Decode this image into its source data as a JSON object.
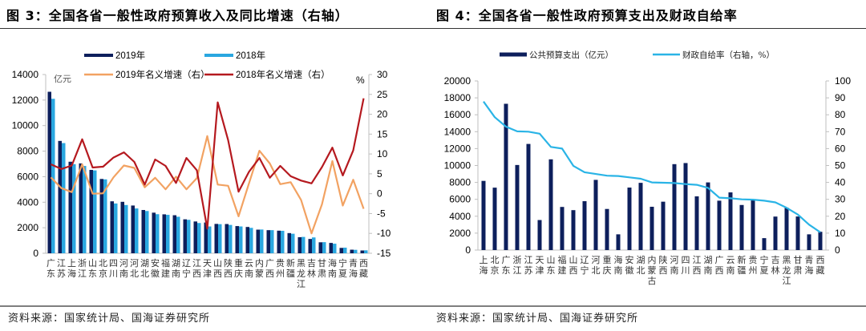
{
  "panels": {
    "left": {
      "title": "图 3：全国各省一般性政府预算收入及同比增速（右轴）",
      "source": "资料来源：国家统计局、国海证券研究所"
    },
    "right": {
      "title": "图 4：全国各省一般性政府预算支出及财政自给率",
      "source": "资料来源：国家统计局、国海证券研究所"
    }
  },
  "chart_data": [
    {
      "type": "bar",
      "title": "全国各省一般性政府预算收入及同比增速（右轴）",
      "left_unit_label": "亿元",
      "right_unit_label": "%",
      "ylim": [
        0,
        14000
      ],
      "y_ticks": [
        0,
        2000,
        4000,
        6000,
        8000,
        10000,
        12000,
        14000
      ],
      "y2lim": [
        -15,
        30
      ],
      "y2_ticks": [
        -15,
        -10,
        -5,
        0,
        5,
        10,
        15,
        20,
        25,
        30
      ],
      "grid": false,
      "legend_position": "top",
      "categories": [
        "广东",
        "江苏",
        "上海",
        "浙江",
        "山东",
        "北京",
        "四川",
        "河南",
        "河北",
        "湖北",
        "安徽",
        "福建",
        "湖南",
        "辽宁",
        "江西",
        "天津",
        "山西",
        "陕西",
        "重庆",
        "云南",
        "内蒙",
        "广西",
        "贵州",
        "新疆",
        "黑龙江",
        "吉林",
        "甘肃",
        "海南",
        "宁夏",
        "青海",
        "西藏"
      ],
      "series": [
        {
          "name": "2019年",
          "type": "bar",
          "axis": "left",
          "color": "#0d1f5c",
          "values": [
            12650,
            8800,
            7170,
            7040,
            6530,
            5820,
            4070,
            4030,
            3740,
            3390,
            3180,
            3050,
            2980,
            2660,
            2490,
            2410,
            2300,
            2290,
            2130,
            2060,
            1850,
            1810,
            1770,
            1580,
            1260,
            1120,
            860,
            810,
            420,
            280,
            220
          ]
        },
        {
          "name": "2018年",
          "type": "bar",
          "axis": "left",
          "color": "#2aa7e0",
          "values": [
            12100,
            8630,
            6980,
            6840,
            6490,
            5790,
            3900,
            3780,
            3510,
            3310,
            3060,
            3010,
            2860,
            2620,
            2370,
            2100,
            2280,
            2220,
            2100,
            1990,
            1860,
            1810,
            1760,
            1530,
            1280,
            1240,
            870,
            750,
            440,
            270,
            230
          ]
        },
        {
          "name": "2019年名义增速（右）",
          "type": "line",
          "axis": "right",
          "color": "#f2a262",
          "values": [
            4.1,
            1.4,
            0.4,
            7.4,
            0.0,
            0.1,
            4.1,
            7.1,
            6.5,
            1.6,
            4.0,
            1.1,
            4.3,
            1.1,
            3.9,
            14.5,
            2.3,
            2.0,
            -5.7,
            2.6,
            10.8,
            7.6,
            2.4,
            2.9,
            -1.6,
            -10.0,
            -2.7,
            8.2,
            -3.0,
            3.5,
            -3.8
          ]
        },
        {
          "name": "2018年名义增速（右）",
          "type": "line",
          "axis": "right",
          "color": "#b5191f",
          "values": [
            7.4,
            6.2,
            7.1,
            13.7,
            6.6,
            6.8,
            9.1,
            10.4,
            8.0,
            2.3,
            8.6,
            7.0,
            2.7,
            9.0,
            5.9,
            -8.8,
            23.0,
            13.5,
            0.5,
            5.5,
            9.0,
            4.0,
            7.0,
            4.4,
            3.3,
            2.6,
            6.7,
            11.6,
            4.6,
            10.9,
            24.0
          ]
        }
      ]
    },
    {
      "type": "bar",
      "title": "全国各省一般性政府预算支出及财政自给率",
      "ylim": [
        0,
        20000
      ],
      "y_ticks": [
        0,
        2000,
        4000,
        6000,
        8000,
        10000,
        12000,
        14000,
        16000,
        18000,
        20000
      ],
      "y2lim": [
        0,
        100
      ],
      "y2_ticks": [
        0,
        10,
        20,
        30,
        40,
        50,
        60,
        70,
        80,
        90,
        100
      ],
      "grid": false,
      "legend_position": "top",
      "categories": [
        "上海",
        "北京",
        "广东",
        "浙江",
        "江苏",
        "天津",
        "山东",
        "福建",
        "山西",
        "辽宁",
        "河北",
        "重庆",
        "海南",
        "安徽",
        "湖北",
        "内蒙古",
        "陕西",
        "河南",
        "四川",
        "江西",
        "湖南",
        "广西",
        "云南",
        "新疆",
        "贵州",
        "宁夏",
        "吉林",
        "黑龙江",
        "甘肃",
        "青海",
        "西藏"
      ],
      "series": [
        {
          "name": "公共预算支出（亿元）",
          "type": "bar",
          "axis": "left",
          "color": "#0d1f5c",
          "values": [
            8180,
            7380,
            17300,
            10060,
            12550,
            3550,
            10730,
            5100,
            4720,
            5780,
            8300,
            4860,
            1860,
            7390,
            7950,
            5120,
            5720,
            10160,
            10290,
            6350,
            8000,
            5840,
            6820,
            5330,
            5880,
            1410,
            3960,
            5010,
            3970,
            1860,
            2160
          ]
        },
        {
          "name": "财政自给率（右轴，%）",
          "type": "line",
          "axis": "right",
          "color": "#2ab4e6",
          "values": [
            87.8,
            78.6,
            73.0,
            70.2,
            70.0,
            68.8,
            61.0,
            60.0,
            49.8,
            46.0,
            45.0,
            44.0,
            43.8,
            43.0,
            42.2,
            40.0,
            39.8,
            39.6,
            39.0,
            38.6,
            36.8,
            31.0,
            30.6,
            30.0,
            29.8,
            29.2,
            28.2,
            25.0,
            21.0,
            15.0,
            10.5
          ]
        }
      ]
    }
  ]
}
